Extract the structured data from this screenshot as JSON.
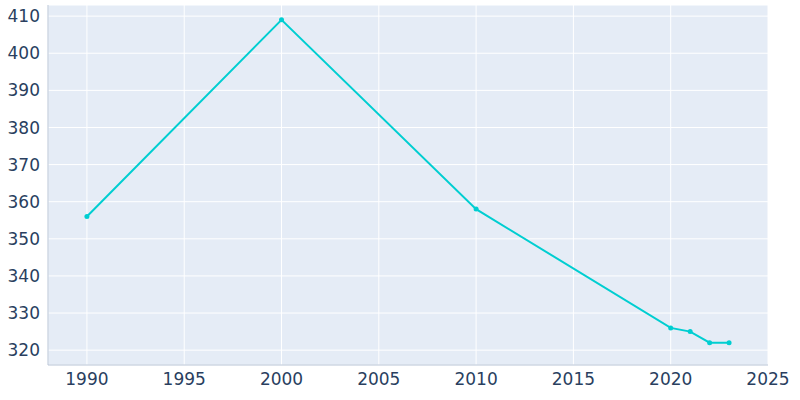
{
  "chart_data": {
    "type": "line",
    "x": [
      1990,
      2000,
      2010,
      2020,
      2021,
      2022,
      2023
    ],
    "values": [
      356,
      409,
      358,
      326,
      325,
      322,
      322
    ],
    "color": "#00ced1",
    "marker": "circle",
    "xlim": [
      1988,
      2025
    ],
    "xticks": [
      1990,
      1995,
      2000,
      2005,
      2010,
      2015,
      2020,
      2025
    ],
    "ylim": [
      316,
      413
    ],
    "yticks": [
      320,
      330,
      340,
      350,
      360,
      370,
      380,
      390,
      400,
      410
    ],
    "grid": true
  }
}
